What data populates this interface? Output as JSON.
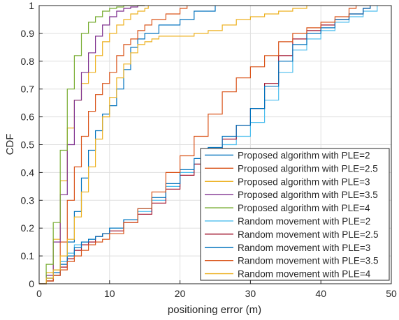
{
  "chart_data": {
    "type": "line",
    "xlabel": "positioning error (m)",
    "ylabel": "CDF",
    "xlim": [
      0,
      50
    ],
    "ylim": [
      0,
      1
    ],
    "xticks": [
      0,
      10,
      20,
      30,
      40,
      50
    ],
    "yticks": [
      0,
      0.1,
      0.2,
      0.3,
      0.4,
      0.5,
      0.6,
      0.7,
      0.8,
      0.9,
      1
    ],
    "grid": true,
    "legend_position": "bottom-right",
    "series": [
      {
        "name": "Proposed algorithm with PLE=2",
        "color": "#0072BD",
        "x": [
          0,
          1,
          2,
          3,
          4,
          5,
          6,
          7,
          8,
          9,
          10,
          11,
          12,
          13,
          14,
          15,
          17,
          20,
          22,
          25
        ],
        "y": [
          0,
          0.01,
          0.03,
          0.08,
          0.15,
          0.26,
          0.38,
          0.48,
          0.55,
          0.61,
          0.64,
          0.7,
          0.77,
          0.85,
          0.88,
          0.9,
          0.93,
          0.95,
          0.98,
          1.0
        ]
      },
      {
        "name": "Proposed algorithm with PLE=2.5",
        "color": "#D95319",
        "x": [
          0,
          1,
          2,
          3,
          4,
          5,
          6,
          7,
          8,
          9,
          10,
          11,
          12,
          13,
          14,
          15,
          16,
          18,
          20,
          21
        ],
        "y": [
          0,
          0.01,
          0.05,
          0.15,
          0.3,
          0.42,
          0.53,
          0.62,
          0.68,
          0.72,
          0.76,
          0.82,
          0.86,
          0.88,
          0.91,
          0.93,
          0.95,
          0.97,
          0.99,
          1.0
        ]
      },
      {
        "name": "Proposed algorithm with PLE=3",
        "color": "#EDB120",
        "x": [
          0,
          1,
          2,
          3,
          4,
          5,
          6,
          7,
          8,
          9,
          10,
          11,
          12,
          13,
          14,
          15,
          15.5
        ],
        "y": [
          0,
          0.04,
          0.16,
          0.37,
          0.56,
          0.66,
          0.72,
          0.76,
          0.82,
          0.87,
          0.9,
          0.93,
          0.95,
          0.97,
          0.98,
          0.99,
          1.0
        ]
      },
      {
        "name": "Proposed algorithm with PLE=3.5",
        "color": "#7E2F8E",
        "x": [
          0,
          1,
          2,
          3,
          4,
          5,
          6,
          7,
          8,
          9,
          10,
          11,
          12,
          13,
          14,
          15
        ],
        "y": [
          0,
          0.03,
          0.15,
          0.32,
          0.5,
          0.66,
          0.76,
          0.83,
          0.89,
          0.93,
          0.96,
          0.98,
          0.99,
          0.995,
          1.0,
          1.0
        ]
      },
      {
        "name": "Proposed algorithm with PLE=4",
        "color": "#77AC30",
        "x": [
          0,
          1,
          2,
          3,
          4,
          5,
          6,
          7,
          8,
          9,
          10,
          11,
          12,
          13,
          14,
          15
        ],
        "y": [
          0,
          0.07,
          0.22,
          0.48,
          0.7,
          0.82,
          0.9,
          0.94,
          0.96,
          0.98,
          0.99,
          0.995,
          1.0,
          1.0,
          1.0,
          1.0
        ]
      },
      {
        "name": "Random movement with PLE=2",
        "color": "#4DBEEE",
        "x": [
          0,
          1,
          2,
          3,
          4,
          5,
          6,
          7,
          8,
          9,
          10,
          12,
          14,
          16,
          18,
          20,
          22,
          24,
          26,
          28,
          30,
          32,
          34,
          36,
          38,
          40,
          42,
          44,
          46,
          48
        ],
        "y": [
          0,
          0.02,
          0.05,
          0.08,
          0.11,
          0.14,
          0.15,
          0.16,
          0.17,
          0.18,
          0.2,
          0.23,
          0.26,
          0.3,
          0.35,
          0.4,
          0.43,
          0.47,
          0.5,
          0.53,
          0.58,
          0.66,
          0.76,
          0.84,
          0.88,
          0.91,
          0.94,
          0.96,
          0.98,
          1.0
        ]
      },
      {
        "name": "Random movement with PLE=2.5",
        "color": "#A2142F",
        "x": [
          0,
          1,
          2,
          3,
          4,
          5,
          6,
          7,
          8,
          9,
          10,
          12,
          14,
          16,
          18,
          20,
          22,
          24,
          26,
          28,
          30,
          32,
          34,
          36,
          38,
          40,
          42,
          44,
          46,
          47
        ],
        "y": [
          0,
          0.01,
          0.03,
          0.06,
          0.09,
          0.12,
          0.14,
          0.15,
          0.17,
          0.18,
          0.19,
          0.22,
          0.25,
          0.29,
          0.34,
          0.39,
          0.43,
          0.48,
          0.52,
          0.57,
          0.63,
          0.72,
          0.82,
          0.88,
          0.91,
          0.93,
          0.95,
          0.97,
          0.99,
          1.0
        ]
      },
      {
        "name": "Random movement with PLE=3",
        "color": "#0072BD",
        "x": [
          0,
          1,
          2,
          3,
          4,
          5,
          6,
          7,
          8,
          9,
          10,
          12,
          14,
          16,
          18,
          20,
          22,
          24,
          26,
          28,
          30,
          32,
          34,
          36,
          38,
          40,
          42,
          44,
          46,
          47
        ],
        "y": [
          0,
          0.02,
          0.04,
          0.07,
          0.1,
          0.13,
          0.15,
          0.16,
          0.17,
          0.18,
          0.2,
          0.23,
          0.27,
          0.31,
          0.36,
          0.41,
          0.45,
          0.49,
          0.53,
          0.57,
          0.63,
          0.71,
          0.8,
          0.86,
          0.9,
          0.92,
          0.95,
          0.97,
          0.99,
          1.0
        ]
      },
      {
        "name": "Random movement with PLE=3.5",
        "color": "#D95319",
        "x": [
          0,
          1,
          2,
          3,
          4,
          5,
          6,
          7,
          8,
          9,
          10,
          12,
          14,
          16,
          18,
          20,
          22,
          24,
          26,
          28,
          30,
          32,
          34,
          36,
          38,
          40,
          42,
          44,
          45
        ],
        "y": [
          0,
          0.01,
          0.03,
          0.05,
          0.08,
          0.1,
          0.12,
          0.14,
          0.15,
          0.16,
          0.18,
          0.22,
          0.27,
          0.33,
          0.4,
          0.46,
          0.53,
          0.61,
          0.69,
          0.74,
          0.78,
          0.82,
          0.87,
          0.9,
          0.92,
          0.94,
          0.96,
          0.99,
          1.0
        ]
      },
      {
        "name": "Random movement with PLE=4",
        "color": "#EDB120",
        "x": [
          0,
          1,
          2,
          3,
          4,
          5,
          6,
          7,
          8,
          9,
          10,
          11,
          12,
          13,
          14,
          15,
          16,
          17,
          18,
          19,
          20,
          22,
          24,
          26,
          28,
          30,
          32,
          34,
          36,
          38
        ],
        "y": [
          0,
          0.02,
          0.05,
          0.1,
          0.16,
          0.24,
          0.33,
          0.42,
          0.52,
          0.6,
          0.67,
          0.74,
          0.79,
          0.83,
          0.86,
          0.87,
          0.88,
          0.89,
          0.89,
          0.89,
          0.89,
          0.9,
          0.91,
          0.93,
          0.95,
          0.96,
          0.97,
          0.98,
          0.99,
          1.0
        ]
      }
    ]
  }
}
